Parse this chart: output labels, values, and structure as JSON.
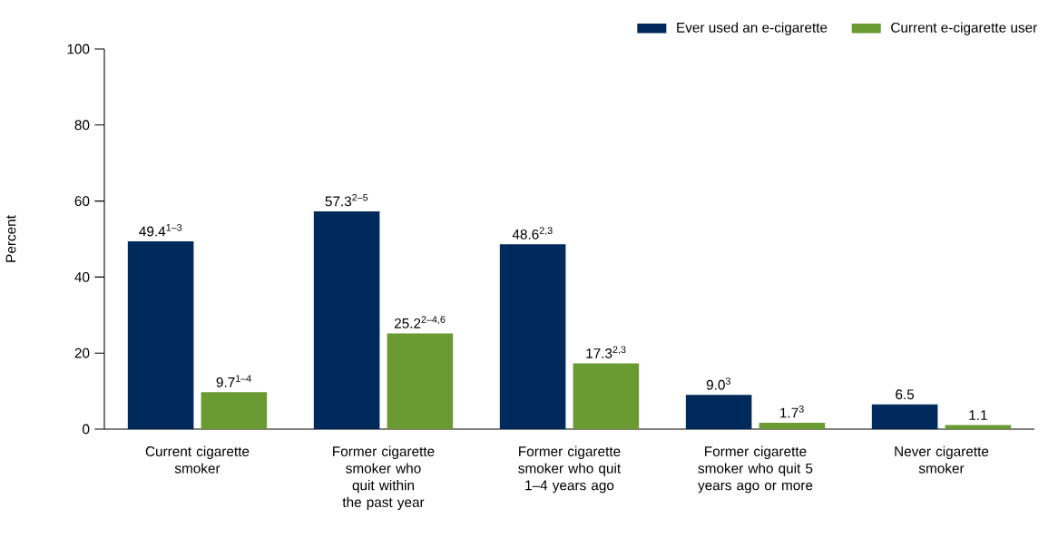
{
  "chart_data": {
    "type": "bar",
    "ylabel": "Percent",
    "categories": [
      "Current cigarette smoker",
      "Former cigarette smoker who quit within the past year",
      "Former cigarette smoker who quit 1–4 years ago",
      "Former cigarette smoker who quit 5 years ago or more",
      "Never cigarette smoker"
    ],
    "series": [
      {
        "name": "Ever used an e-cigarette",
        "color": "#002a5c",
        "values": [
          49.4,
          57.3,
          48.6,
          9.0,
          6.5
        ],
        "value_labels": [
          "49.4$^{1–3}$",
          "57.3$^{2–5}$",
          "48.6$^{2,3}$",
          "9.0$^{3}$",
          "6.5"
        ]
      },
      {
        "name": "Current e-cigarette user",
        "color": "#6a9a32",
        "values": [
          9.7,
          25.2,
          17.3,
          1.7,
          1.1
        ],
        "value_labels": [
          "9.7$^{1–4}$",
          "25.2$^{2–4,6}$",
          "17.3$^{2,3}$",
          "1.7$^{3}$",
          "1.1"
        ]
      }
    ],
    "ylim": [
      0,
      100
    ],
    "yticks": [
      0,
      20,
      40,
      60,
      80,
      100
    ],
    "grid": false,
    "legend": "top right"
  }
}
